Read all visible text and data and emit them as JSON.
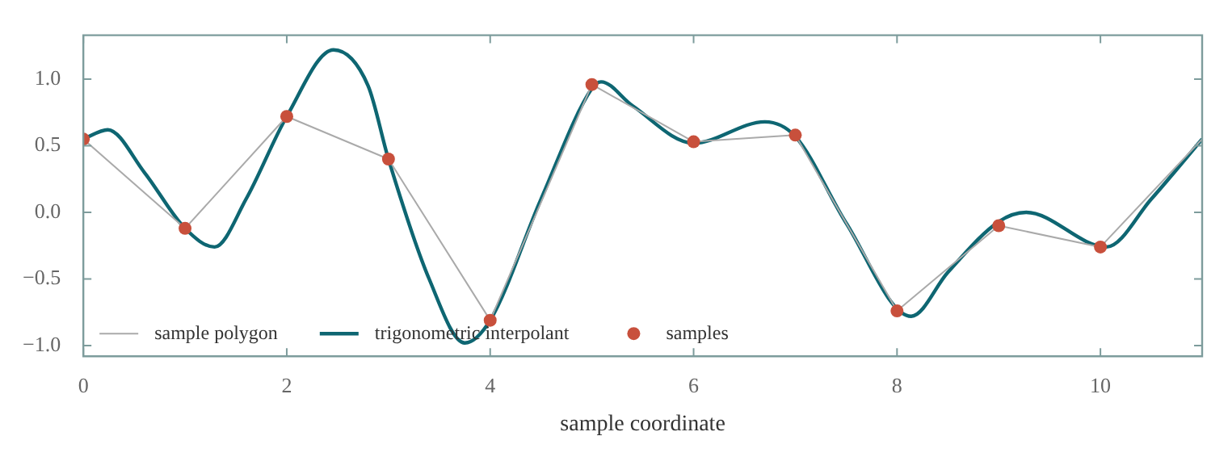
{
  "chart_data": {
    "type": "line",
    "xlabel": "sample coordinate",
    "xlim": [
      0,
      11
    ],
    "xticks": [
      0,
      2,
      4,
      6,
      8,
      10
    ],
    "ylim": [
      -1.08,
      1.33
    ],
    "yticks": [
      {
        "value": -1.0,
        "label": "−1.0"
      },
      {
        "value": -0.5,
        "label": "−0.5"
      },
      {
        "value": 0.0,
        "label": "0.0"
      },
      {
        "value": 0.5,
        "label": "0.5"
      },
      {
        "value": 1.0,
        "label": "1.0"
      }
    ],
    "grid": false,
    "legend": "bottom left",
    "series": [
      {
        "name": "sample polygon",
        "type": "line",
        "color": "#aaaaaa",
        "marker": "none",
        "x": [
          0,
          1,
          2,
          3,
          4,
          5,
          6,
          7,
          8,
          9,
          10,
          11
        ],
        "values": [
          0.55,
          -0.12,
          0.72,
          0.4,
          -0.81,
          0.96,
          0.53,
          0.58,
          -0.74,
          -0.1,
          -0.26,
          0.55
        ]
      },
      {
        "name": "trigonometric interpolant",
        "type": "line",
        "color": "#0e6672",
        "marker": "none",
        "x": [
          0,
          0.24,
          0.6,
          1,
          1.29,
          1.6,
          2,
          2.46,
          2.8,
          3,
          3.4,
          3.75,
          4,
          4.5,
          5,
          5.09,
          5.4,
          6,
          6.7,
          7,
          7.5,
          8.14,
          8.5,
          9,
          9.27,
          10.06,
          10.5,
          11
        ],
        "values": [
          0.55,
          0.62,
          0.3,
          -0.12,
          -0.26,
          0.1,
          0.72,
          1.22,
          0.95,
          0.4,
          -0.5,
          -0.98,
          -0.81,
          0.1,
          0.93,
          0.98,
          0.8,
          0.52,
          0.68,
          0.57,
          -0.08,
          -0.78,
          -0.45,
          -0.07,
          0.0,
          -0.26,
          0.1,
          0.55
        ]
      },
      {
        "name": "samples",
        "type": "scatter",
        "color": "#c8503c",
        "marker": "circle",
        "x": [
          0,
          1,
          2,
          3,
          4,
          5,
          6,
          7,
          8,
          9,
          10
        ],
        "values": [
          0.55,
          -0.12,
          0.72,
          0.4,
          -0.81,
          0.96,
          0.53,
          0.58,
          -0.74,
          -0.1,
          -0.26
        ]
      }
    ]
  }
}
